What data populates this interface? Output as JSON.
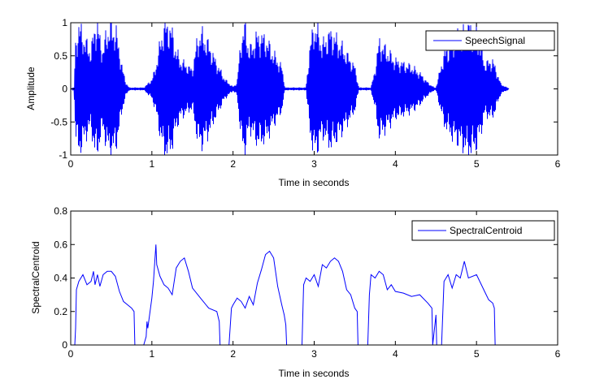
{
  "chart_data": [
    {
      "type": "line",
      "xlabel": "Time in seconds",
      "ylabel": "Amplitude",
      "xlim": [
        0,
        6
      ],
      "ylim": [
        -1,
        1
      ],
      "xticks": [
        "0",
        "1",
        "2",
        "3",
        "4",
        "5",
        "6"
      ],
      "yticks": [
        "-1",
        "-0.5",
        "0",
        "0.5",
        "1"
      ],
      "grid": false,
      "legend": {
        "entries": [
          "SpeechSignal"
        ],
        "position": "top-right"
      },
      "series": [
        {
          "name": "SpeechSignal",
          "color": "#0000ff",
          "envelope": {
            "t": [
              0.0,
              0.04,
              0.06,
              0.08,
              0.1,
              0.15,
              0.2,
              0.25,
              0.28,
              0.3,
              0.33,
              0.36,
              0.4,
              0.44,
              0.5,
              0.56,
              0.6,
              0.64,
              0.68,
              0.72,
              0.78,
              0.82,
              0.9,
              0.95,
              1.0,
              1.04,
              1.1,
              1.15,
              1.2,
              1.25,
              1.3,
              1.35,
              1.45,
              1.5,
              1.55,
              1.6,
              1.7,
              1.8,
              1.9,
              2.0,
              2.05,
              2.1,
              2.15,
              2.2,
              2.3,
              2.4,
              2.5,
              2.6,
              2.64,
              2.7,
              2.8,
              2.9,
              2.95,
              3.0,
              3.05,
              3.1,
              3.2,
              3.3,
              3.4,
              3.5,
              3.55,
              3.6,
              3.7,
              3.75,
              3.8,
              3.9,
              4.0,
              4.1,
              4.2,
              4.3,
              4.4,
              4.48,
              4.5,
              4.6,
              4.7,
              4.8,
              4.9,
              5.0,
              5.05,
              5.1,
              5.2,
              5.3,
              5.4
            ],
            "amp": [
              0.0,
              0.02,
              0.7,
              0.85,
              1.0,
              0.85,
              0.7,
              0.6,
              0.85,
              1.0,
              1.0,
              0.8,
              0.6,
              0.9,
              1.0,
              0.9,
              0.6,
              0.3,
              0.1,
              0.02,
              0.02,
              0.02,
              0.02,
              0.08,
              0.15,
              0.3,
              0.7,
              1.0,
              1.0,
              0.9,
              0.6,
              0.45,
              0.35,
              0.3,
              0.7,
              0.9,
              0.7,
              0.4,
              0.15,
              0.03,
              0.1,
              0.8,
              1.0,
              0.6,
              0.85,
              0.8,
              0.55,
              0.35,
              0.02,
              0.02,
              0.02,
              0.02,
              0.7,
              1.0,
              0.9,
              0.7,
              0.9,
              0.75,
              0.55,
              0.35,
              0.02,
              0.02,
              0.02,
              0.3,
              0.75,
              0.6,
              0.45,
              0.4,
              0.35,
              0.25,
              0.1,
              0.02,
              0.02,
              0.55,
              0.75,
              0.85,
              1.0,
              0.9,
              0.7,
              0.4,
              0.45,
              0.08,
              0.0
            ]
          }
        }
      ]
    },
    {
      "type": "line",
      "xlabel": "Time in seconds",
      "ylabel": "SpectralCentroid",
      "xlim": [
        0,
        6
      ],
      "ylim": [
        0,
        0.8
      ],
      "xticks": [
        "0",
        "1",
        "2",
        "3",
        "4",
        "5",
        "6"
      ],
      "yticks": [
        "0",
        "0.2",
        "0.4",
        "0.6",
        "0.8"
      ],
      "grid": false,
      "legend": {
        "entries": [
          "SpectralCentroid"
        ],
        "position": "top-right"
      },
      "series": [
        {
          "name": "SpectralCentroid",
          "color": "#0000ff",
          "x": [
            0.0,
            0.05,
            0.06,
            0.07,
            0.1,
            0.15,
            0.2,
            0.25,
            0.28,
            0.3,
            0.33,
            0.36,
            0.4,
            0.45,
            0.5,
            0.55,
            0.6,
            0.65,
            0.7,
            0.75,
            0.78,
            0.79,
            0.9,
            0.93,
            0.94,
            0.95,
            1.0,
            1.02,
            1.05,
            1.06,
            1.1,
            1.15,
            1.2,
            1.25,
            1.3,
            1.35,
            1.4,
            1.45,
            1.5,
            1.6,
            1.7,
            1.8,
            1.83,
            1.84,
            1.95,
            1.98,
            2.0,
            2.05,
            2.1,
            2.15,
            2.2,
            2.25,
            2.3,
            2.35,
            2.4,
            2.45,
            2.5,
            2.55,
            2.6,
            2.63,
            2.65,
            2.66,
            2.85,
            2.87,
            2.9,
            2.95,
            3.0,
            3.05,
            3.1,
            3.15,
            3.2,
            3.25,
            3.3,
            3.35,
            3.4,
            3.45,
            3.5,
            3.53,
            3.54,
            3.66,
            3.68,
            3.7,
            3.75,
            3.8,
            3.85,
            3.9,
            3.95,
            4.0,
            4.1,
            4.2,
            4.3,
            4.4,
            4.45,
            4.46,
            4.5,
            4.51,
            4.57,
            4.6,
            4.65,
            4.7,
            4.75,
            4.8,
            4.83,
            4.85,
            4.9,
            5.0,
            5.1,
            5.15,
            5.2,
            5.22,
            5.23
          ],
          "values": [
            0.0,
            0.0,
            0.1,
            0.33,
            0.38,
            0.42,
            0.36,
            0.38,
            0.44,
            0.36,
            0.42,
            0.35,
            0.42,
            0.44,
            0.44,
            0.41,
            0.32,
            0.26,
            0.24,
            0.22,
            0.2,
            0.0,
            0.0,
            0.05,
            0.14,
            0.1,
            0.28,
            0.38,
            0.6,
            0.48,
            0.41,
            0.36,
            0.34,
            0.3,
            0.46,
            0.5,
            0.52,
            0.44,
            0.34,
            0.28,
            0.22,
            0.2,
            0.14,
            0.0,
            0.0,
            0.22,
            0.24,
            0.28,
            0.26,
            0.22,
            0.29,
            0.24,
            0.37,
            0.45,
            0.54,
            0.56,
            0.52,
            0.35,
            0.24,
            0.18,
            0.12,
            0.0,
            0.0,
            0.36,
            0.4,
            0.38,
            0.42,
            0.35,
            0.48,
            0.46,
            0.5,
            0.52,
            0.5,
            0.44,
            0.33,
            0.3,
            0.22,
            0.2,
            0.0,
            0.0,
            0.3,
            0.42,
            0.4,
            0.44,
            0.42,
            0.33,
            0.36,
            0.32,
            0.31,
            0.29,
            0.3,
            0.25,
            0.22,
            0.0,
            0.18,
            0.0,
            0.0,
            0.38,
            0.42,
            0.34,
            0.42,
            0.4,
            0.46,
            0.5,
            0.4,
            0.42,
            0.32,
            0.27,
            0.25,
            0.22,
            0.0
          ]
        }
      ]
    }
  ]
}
